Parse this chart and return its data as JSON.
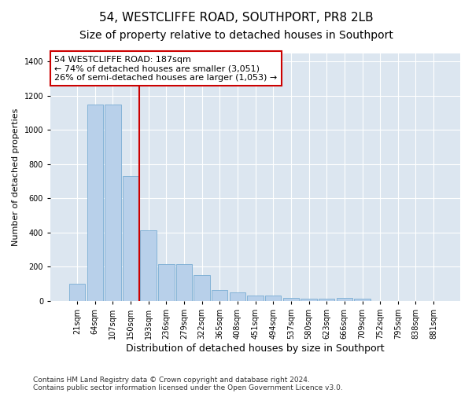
{
  "title": "54, WESTCLIFFE ROAD, SOUTHPORT, PR8 2LB",
  "subtitle": "Size of property relative to detached houses in Southport",
  "xlabel": "Distribution of detached houses by size in Southport",
  "ylabel": "Number of detached properties",
  "footer_line1": "Contains HM Land Registry data © Crown copyright and database right 2024.",
  "footer_line2": "Contains public sector information licensed under the Open Government Licence v3.0.",
  "categories": [
    "21sqm",
    "64sqm",
    "107sqm",
    "150sqm",
    "193sqm",
    "236sqm",
    "279sqm",
    "322sqm",
    "365sqm",
    "408sqm",
    "451sqm",
    "494sqm",
    "537sqm",
    "580sqm",
    "623sqm",
    "666sqm",
    "709sqm",
    "752sqm",
    "795sqm",
    "838sqm",
    "881sqm"
  ],
  "values": [
    100,
    1150,
    1150,
    730,
    415,
    215,
    215,
    150,
    65,
    50,
    30,
    30,
    20,
    15,
    15,
    20,
    15,
    0,
    0,
    0,
    0
  ],
  "bar_color": "#b8d0ea",
  "bar_edge_color": "#7aadd4",
  "vline_index": 3.5,
  "vline_color": "#cc0000",
  "annotation_line1": "54 WESTCLIFFE ROAD: 187sqm",
  "annotation_line2": "← 74% of detached houses are smaller (3,051)",
  "annotation_line3": "26% of semi-detached houses are larger (1,053) →",
  "annotation_box_color": "#cc0000",
  "ylim": [
    0,
    1450
  ],
  "yticks": [
    0,
    200,
    400,
    600,
    800,
    1000,
    1200,
    1400
  ],
  "background_color": "#ffffff",
  "plot_bg_color": "#dce6f0",
  "grid_color": "#ffffff",
  "title_fontsize": 11,
  "subtitle_fontsize": 10,
  "xlabel_fontsize": 9,
  "ylabel_fontsize": 8,
  "tick_fontsize": 7,
  "annotation_fontsize": 8,
  "footer_fontsize": 6.5
}
